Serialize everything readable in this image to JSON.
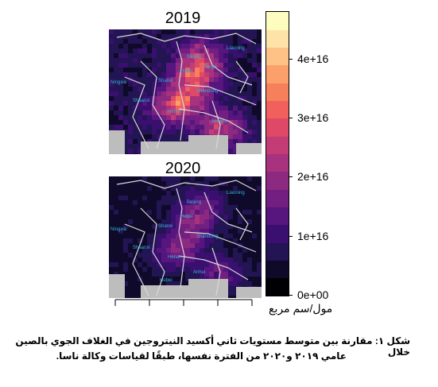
{
  "panels": [
    {
      "title": "2019",
      "intensity": 1.0
    },
    {
      "title": "2020",
      "intensity": 0.6
    }
  ],
  "province_labels": [
    "Liaoning",
    "Beijing",
    "Tianjin",
    "Hebei",
    "Shanxi",
    "Shandong",
    "Henan",
    "Jiangsu",
    "Shaanxi",
    "Ningxia",
    "Anhui",
    "Hubei"
  ],
  "chart_data": {
    "type": "heatmap",
    "colorbar": {
      "ticks": [
        0,
        1e+16,
        2e+16,
        3e+16,
        4e+16
      ],
      "tick_labels": [
        "0e+00",
        "1e+16",
        "2e+16",
        "3e+16",
        "4e+16"
      ],
      "range": [
        0,
        4.8e+16
      ],
      "colors": [
        "#000004",
        "#0f0a2a",
        "#231453",
        "#3b0f70",
        "#57157e",
        "#721f81",
        "#8c2981",
        "#a8327d",
        "#c43c75",
        "#de4968",
        "#f1605d",
        "#f7805c",
        "#fca06b",
        "#fec287",
        "#fde3a7",
        "#fcfdbf"
      ]
    },
    "unit_label": "مول/سم مربع"
  },
  "caption": {
    "line1": "شكل ١: مقارنة بين متوسط مستويات ثاني أكسيد النيتروجين في الغلاف الجوي بالصين خلال",
    "line2": "عامي ٢٠١٩ و٢٠٢٠ من الفترة نفسها، طبقًا لقياسات وكالة ناسا."
  }
}
